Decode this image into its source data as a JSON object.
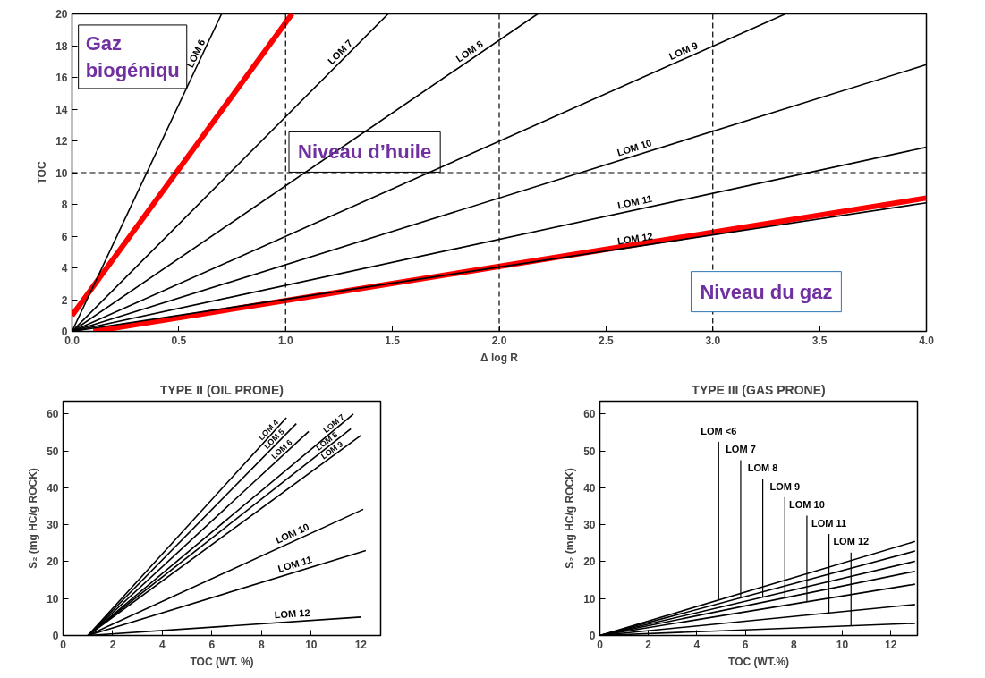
{
  "chart_data": [
    {
      "type": "line",
      "xlabel": "Δ log R",
      "ylabel": "TOC",
      "xlim": [
        0,
        4
      ],
      "ylim": [
        0,
        20
      ],
      "xticks": [
        {
          "value": 0,
          "label": "0.0"
        },
        0.5,
        {
          "value": 1,
          "label": "1.0"
        },
        1.5,
        {
          "value": 2,
          "label": "2.0"
        },
        2.5,
        {
          "value": 3,
          "label": "3.0"
        },
        3.5,
        {
          "value": 4,
          "label": "4.0"
        }
      ],
      "yticks": [
        0,
        2,
        4,
        6,
        8,
        10,
        12,
        14,
        16,
        18,
        20
      ],
      "ref_lines": [
        {
          "axis": "x",
          "value": 1,
          "line_style": "dashed"
        },
        {
          "axis": "x",
          "value": 2,
          "line_style": "dashed"
        },
        {
          "axis": "x",
          "value": 3,
          "line_style": "dashed"
        },
        {
          "axis": "y",
          "value": 10,
          "line_style": "dashed"
        }
      ],
      "annotations": [
        "Gaz biogéniqu",
        "Niveau d’huile",
        "Niveau du gaz"
      ],
      "series": [
        {
          "name": "LOM 6",
          "color": "#000000",
          "x": [
            0,
            0.7
          ],
          "values": [
            0,
            20
          ]
        },
        {
          "name": "LOM 7",
          "color": "#000000",
          "x": [
            0,
            1.48
          ],
          "values": [
            0,
            20
          ]
        },
        {
          "name": "LOM 8",
          "color": "#000000",
          "x": [
            0,
            2.18
          ],
          "values": [
            0,
            20
          ]
        },
        {
          "name": "LOM 9",
          "color": "#000000",
          "x": [
            0,
            3.34
          ],
          "values": [
            0,
            20
          ]
        },
        {
          "name": "LOM 10",
          "color": "#000000",
          "x": [
            0,
            4
          ],
          "values": [
            0,
            16.8
          ]
        },
        {
          "name": "LOM 11",
          "color": "#000000",
          "x": [
            0,
            4
          ],
          "values": [
            0,
            11.6
          ]
        },
        {
          "name": "LOM 12",
          "color": "#000000",
          "x": [
            0,
            4
          ],
          "values": [
            0,
            8.1
          ]
        },
        {
          "color": "#ff0000",
          "x": [
            0,
            1.03
          ],
          "values": [
            1,
            20
          ]
        },
        {
          "color": "#ff0000",
          "x": [
            0.1,
            4
          ],
          "values": [
            0,
            8.4
          ]
        }
      ]
    },
    {
      "type": "line",
      "title": "TYPE II (OIL PRONE)",
      "xlabel": "TOC (WT. %)",
      "ylabel": "S₂ (mg HC/g ROCK)",
      "xlim": [
        0,
        12.8
      ],
      "ylim": [
        0,
        63.5
      ],
      "xticks": [
        0,
        2,
        4,
        6,
        8,
        10,
        12
      ],
      "yticks": [
        0,
        10,
        20,
        30,
        40,
        50,
        60
      ],
      "series": [
        {
          "name": "LOM 4",
          "color": "#000000",
          "x": [
            1,
            9
          ],
          "values": [
            0,
            59
          ]
        },
        {
          "name": "LOM 5",
          "color": "#000000",
          "x": [
            1,
            9.4
          ],
          "values": [
            0,
            57.4
          ]
        },
        {
          "name": "LOM 6",
          "color": "#000000",
          "x": [
            1,
            9.9
          ],
          "values": [
            0,
            55.3
          ]
        },
        {
          "name": "LOM 7",
          "color": "#000000",
          "x": [
            1,
            11.7
          ],
          "values": [
            0,
            60
          ]
        },
        {
          "name": "LOM 8",
          "color": "#000000",
          "x": [
            1,
            11.6
          ],
          "values": [
            0,
            56
          ]
        },
        {
          "name": "LOM 9",
          "color": "#000000",
          "x": [
            1,
            12
          ],
          "values": [
            0,
            54.2
          ]
        },
        {
          "name": "LOM 10",
          "color": "#000000",
          "x": [
            1,
            12.1
          ],
          "values": [
            0,
            34.2
          ]
        },
        {
          "name": "LOM 11",
          "color": "#000000",
          "x": [
            1,
            12.2
          ],
          "values": [
            0,
            23
          ]
        },
        {
          "name": "LOM 12",
          "color": "#000000",
          "x": [
            1,
            12
          ],
          "values": [
            0,
            5
          ]
        }
      ]
    },
    {
      "type": "line",
      "title": "TYPE III (GAS PRONE)",
      "xlabel": "TOC (WT.%)",
      "ylabel": "S₂ (mg HC/g ROCK)",
      "xlim": [
        0,
        13.1
      ],
      "ylim": [
        0,
        63.5
      ],
      "xticks": [
        0,
        2,
        4,
        6,
        8,
        10,
        12
      ],
      "yticks": [
        0,
        10,
        20,
        30,
        40,
        50,
        60
      ],
      "series": [
        {
          "name": "LOM <6",
          "color": "#000000",
          "x": [
            0,
            13
          ],
          "values": [
            0,
            25.5
          ]
        },
        {
          "name": "LOM 7",
          "color": "#000000",
          "x": [
            0,
            13
          ],
          "values": [
            0,
            22.9
          ]
        },
        {
          "name": "LOM 8",
          "color": "#000000",
          "x": [
            0,
            13
          ],
          "values": [
            0,
            20.1
          ]
        },
        {
          "name": "LOM 9",
          "color": "#000000",
          "x": [
            0,
            13
          ],
          "values": [
            0,
            17.4
          ]
        },
        {
          "name": "LOM 10",
          "color": "#000000",
          "x": [
            0,
            13
          ],
          "values": [
            0,
            13.9
          ]
        },
        {
          "name": "LOM 11",
          "color": "#000000",
          "x": [
            0,
            13
          ],
          "values": [
            0,
            8.4
          ]
        },
        {
          "name": "LOM 12",
          "color": "#000000",
          "x": [
            0,
            13
          ],
          "values": [
            0,
            3.3
          ]
        }
      ]
    }
  ]
}
